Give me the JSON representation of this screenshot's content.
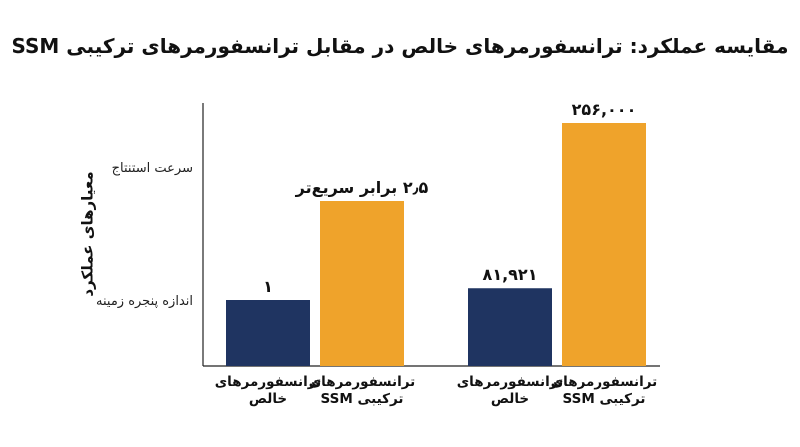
{
  "chart_data": {
    "type": "bar",
    "title": "مقایسه عملکرد: ترانسفورمرهای خالص در مقابل ترانسفورمرهای ترکیبی SSM",
    "ylabel": "معیارهای عملکرد",
    "y_tick_labels": [
      "سرعت استنتاج",
      "اندازه پنجره زمینه"
    ],
    "groups": [
      {
        "metric": "سرعت استنتاج",
        "bars": [
          {
            "category": [
              "ترانسفورمرهای",
              "خالص"
            ],
            "value": 1,
            "label": "۱",
            "color": "#1f3461"
          },
          {
            "category": [
              "ترانسفورمرهای",
              "ترکیبی SSM"
            ],
            "value": 2.5,
            "label": "۲٫۵ برابر سریع‌تر",
            "color": "#efa32b"
          }
        ]
      },
      {
        "metric": "اندازه پنجره زمینه",
        "bars": [
          {
            "category": [
              "ترانسفورمرهای",
              "خالص"
            ],
            "value": 81921,
            "label": "۸۱,۹۲۱",
            "color": "#1f3461"
          },
          {
            "category": [
              "ترانسفورمرهای",
              "ترکیبی SSM"
            ],
            "value": 256000,
            "label": "۲۵۶,۰۰۰",
            "color": "#efa32b"
          }
        ]
      }
    ]
  }
}
